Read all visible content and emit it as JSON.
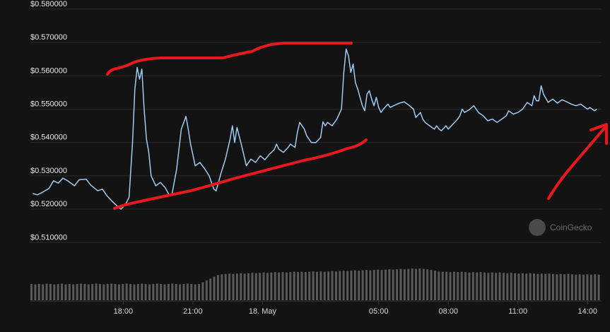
{
  "chart_data": {
    "type": "line",
    "title": "",
    "xlabel": "",
    "ylabel": "",
    "ylim": [
      0.505,
      0.5805
    ],
    "y_ticks": [
      0.51,
      0.52,
      0.53,
      0.54,
      0.55,
      0.56,
      0.57,
      0.58
    ],
    "y_tick_labels": [
      "$0.510000",
      "$0.520000",
      "$0.530000",
      "$0.540000",
      "$0.550000",
      "$0.560000",
      "$0.570000",
      "$0.580000"
    ],
    "x_ticks": [
      {
        "label": "18:00",
        "value": 18
      },
      {
        "label": "21:00",
        "value": 21
      },
      {
        "label": "18. May",
        "value": 24
      },
      {
        "label": "05:00",
        "value": 29
      },
      {
        "label": "08:00",
        "value": 32
      },
      {
        "label": "11:00",
        "value": 35
      },
      {
        "label": "14:00",
        "value": 38
      }
    ],
    "grid": true,
    "watermark": "CoinGecko",
    "series": [
      {
        "type": "line",
        "color": "#9ecbf0",
        "x_unit": "hours",
        "points": [
          [
            14.1,
            0.5247
          ],
          [
            14.3,
            0.5243
          ],
          [
            14.5,
            0.525
          ],
          [
            14.8,
            0.5262
          ],
          [
            15.0,
            0.5285
          ],
          [
            15.2,
            0.5278
          ],
          [
            15.4,
            0.5293
          ],
          [
            15.6,
            0.5285
          ],
          [
            15.9,
            0.527
          ],
          [
            16.1,
            0.5288
          ],
          [
            16.4,
            0.529
          ],
          [
            16.6,
            0.5272
          ],
          [
            16.9,
            0.5255
          ],
          [
            17.1,
            0.526
          ],
          [
            17.3,
            0.524
          ],
          [
            17.5,
            0.5225
          ],
          [
            17.7,
            0.5212
          ],
          [
            17.9,
            0.52
          ],
          [
            18.1,
            0.5215
          ],
          [
            18.25,
            0.5235
          ],
          [
            18.4,
            0.54
          ],
          [
            18.5,
            0.556
          ],
          [
            18.6,
            0.5625
          ],
          [
            18.7,
            0.559
          ],
          [
            18.8,
            0.562
          ],
          [
            18.9,
            0.55
          ],
          [
            19.0,
            0.541
          ],
          [
            19.1,
            0.537
          ],
          [
            19.2,
            0.53
          ],
          [
            19.4,
            0.527
          ],
          [
            19.6,
            0.528
          ],
          [
            19.8,
            0.5265
          ],
          [
            20.0,
            0.524
          ],
          [
            20.1,
            0.5245
          ],
          [
            20.3,
            0.532
          ],
          [
            20.5,
            0.544
          ],
          [
            20.7,
            0.5478
          ],
          [
            20.8,
            0.544
          ],
          [
            20.9,
            0.5395
          ],
          [
            21.1,
            0.533
          ],
          [
            21.3,
            0.534
          ],
          [
            21.5,
            0.5322
          ],
          [
            21.7,
            0.53
          ],
          [
            21.9,
            0.526
          ],
          [
            22.0,
            0.5255
          ],
          [
            22.2,
            0.5305
          ],
          [
            22.4,
            0.535
          ],
          [
            22.6,
            0.541
          ],
          [
            22.7,
            0.545
          ],
          [
            22.8,
            0.54
          ],
          [
            22.9,
            0.5445
          ],
          [
            23.1,
            0.539
          ],
          [
            23.3,
            0.533
          ],
          [
            23.5,
            0.535
          ],
          [
            23.7,
            0.534
          ],
          [
            23.9,
            0.536
          ],
          [
            24.1,
            0.5348
          ],
          [
            24.3,
            0.5365
          ],
          [
            24.5,
            0.5378
          ],
          [
            24.6,
            0.5395
          ],
          [
            24.7,
            0.538
          ],
          [
            24.9,
            0.537
          ],
          [
            25.1,
            0.5385
          ],
          [
            25.2,
            0.5395
          ],
          [
            25.4,
            0.5385
          ],
          [
            25.5,
            0.543
          ],
          [
            25.6,
            0.546
          ],
          [
            25.8,
            0.544
          ],
          [
            25.9,
            0.542
          ],
          [
            26.1,
            0.54
          ],
          [
            26.3,
            0.54
          ],
          [
            26.5,
            0.5415
          ],
          [
            26.6,
            0.5462
          ],
          [
            26.7,
            0.545
          ],
          [
            26.8,
            0.546
          ],
          [
            27.0,
            0.545
          ],
          [
            27.2,
            0.547
          ],
          [
            27.4,
            0.55
          ],
          [
            27.5,
            0.561
          ],
          [
            27.6,
            0.568
          ],
          [
            27.7,
            0.566
          ],
          [
            27.8,
            0.561
          ],
          [
            27.9,
            0.5635
          ],
          [
            28.0,
            0.558
          ],
          [
            28.1,
            0.556
          ],
          [
            28.2,
            0.5535
          ],
          [
            28.3,
            0.551
          ],
          [
            28.4,
            0.5495
          ],
          [
            28.5,
            0.5545
          ],
          [
            28.6,
            0.5555
          ],
          [
            28.7,
            0.553
          ],
          [
            28.8,
            0.551
          ],
          [
            28.9,
            0.5535
          ],
          [
            29.0,
            0.5505
          ],
          [
            29.1,
            0.549
          ],
          [
            29.2,
            0.55
          ],
          [
            29.4,
            0.5515
          ],
          [
            29.5,
            0.5505
          ],
          [
            29.7,
            0.5512
          ],
          [
            29.9,
            0.5518
          ],
          [
            30.1,
            0.5522
          ],
          [
            30.3,
            0.5512
          ],
          [
            30.5,
            0.55
          ],
          [
            30.6,
            0.5475
          ],
          [
            30.8,
            0.549
          ],
          [
            30.9,
            0.547
          ],
          [
            31.0,
            0.546
          ],
          [
            31.2,
            0.545
          ],
          [
            31.4,
            0.544
          ],
          [
            31.5,
            0.545
          ],
          [
            31.6,
            0.544
          ],
          [
            31.7,
            0.5435
          ],
          [
            31.9,
            0.545
          ],
          [
            32.0,
            0.544
          ],
          [
            32.2,
            0.5455
          ],
          [
            32.4,
            0.547
          ],
          [
            32.5,
            0.548
          ],
          [
            32.6,
            0.55
          ],
          [
            32.7,
            0.549
          ],
          [
            32.9,
            0.5498
          ],
          [
            33.1,
            0.551
          ],
          [
            33.3,
            0.549
          ],
          [
            33.5,
            0.548
          ],
          [
            33.7,
            0.5465
          ],
          [
            33.9,
            0.547
          ],
          [
            34.1,
            0.546
          ],
          [
            34.3,
            0.547
          ],
          [
            34.5,
            0.548
          ],
          [
            34.6,
            0.5495
          ],
          [
            34.8,
            0.5485
          ],
          [
            35.0,
            0.549
          ],
          [
            35.2,
            0.55
          ],
          [
            35.4,
            0.552
          ],
          [
            35.6,
            0.551
          ],
          [
            35.7,
            0.554
          ],
          [
            35.8,
            0.5525
          ],
          [
            35.9,
            0.5525
          ],
          [
            36.0,
            0.557
          ],
          [
            36.1,
            0.5545
          ],
          [
            36.3,
            0.552
          ],
          [
            36.5,
            0.553
          ],
          [
            36.7,
            0.5518
          ],
          [
            36.9,
            0.5528
          ],
          [
            37.1,
            0.5522
          ],
          [
            37.3,
            0.5515
          ],
          [
            37.5,
            0.551
          ],
          [
            37.7,
            0.5515
          ],
          [
            37.9,
            0.5505
          ],
          [
            38.0,
            0.55
          ],
          [
            38.1,
            0.5505
          ],
          [
            38.3,
            0.5495
          ],
          [
            38.4,
            0.55
          ]
        ]
      },
      {
        "type": "volume",
        "color": "#5a5a5a",
        "values_relative": [
          0.45,
          0.44,
          0.45,
          0.44,
          0.46,
          0.45,
          0.44,
          0.45,
          0.46,
          0.44,
          0.45,
          0.44,
          0.45,
          0.46,
          0.45,
          0.44,
          0.45,
          0.46,
          0.45,
          0.44,
          0.45,
          0.46,
          0.45,
          0.44,
          0.45,
          0.46,
          0.45,
          0.44,
          0.45,
          0.46,
          0.45,
          0.44,
          0.45,
          0.46,
          0.45,
          0.44,
          0.45,
          0.46,
          0.45,
          0.44,
          0.45,
          0.46,
          0.45,
          0.44,
          0.45,
          0.5,
          0.55,
          0.6,
          0.65,
          0.7,
          0.72,
          0.73,
          0.74,
          0.73,
          0.74,
          0.75,
          0.74,
          0.75,
          0.76,
          0.75,
          0.76,
          0.77,
          0.76,
          0.77,
          0.78,
          0.77,
          0.78,
          0.77,
          0.78,
          0.79,
          0.78,
          0.79,
          0.78,
          0.79,
          0.8,
          0.79,
          0.8,
          0.79,
          0.8,
          0.81,
          0.8,
          0.81,
          0.82,
          0.81,
          0.82,
          0.83,
          0.82,
          0.83,
          0.84,
          0.83,
          0.84,
          0.85,
          0.84,
          0.85,
          0.86,
          0.85,
          0.86,
          0.87,
          0.86,
          0.87,
          0.88,
          0.87,
          0.88,
          0.87,
          0.86,
          0.84,
          0.82,
          0.8,
          0.79,
          0.79,
          0.78,
          0.79,
          0.78,
          0.79,
          0.78,
          0.77,
          0.78,
          0.77,
          0.78,
          0.77,
          0.76,
          0.77,
          0.76,
          0.77,
          0.76,
          0.75,
          0.76,
          0.75,
          0.74,
          0.75,
          0.74,
          0.75,
          0.74,
          0.73,
          0.74,
          0.73,
          0.74,
          0.73,
          0.72,
          0.73,
          0.72,
          0.73,
          0.72,
          0.71,
          0.72,
          0.71,
          0.72,
          0.71,
          0.72,
          0.71
        ]
      }
    ]
  },
  "colors": {
    "background": "#131313",
    "grid": "#2a2a2a",
    "price_line": "#9ecbf0",
    "volume": "#5a5a5a",
    "annotation": "#e8191e"
  }
}
